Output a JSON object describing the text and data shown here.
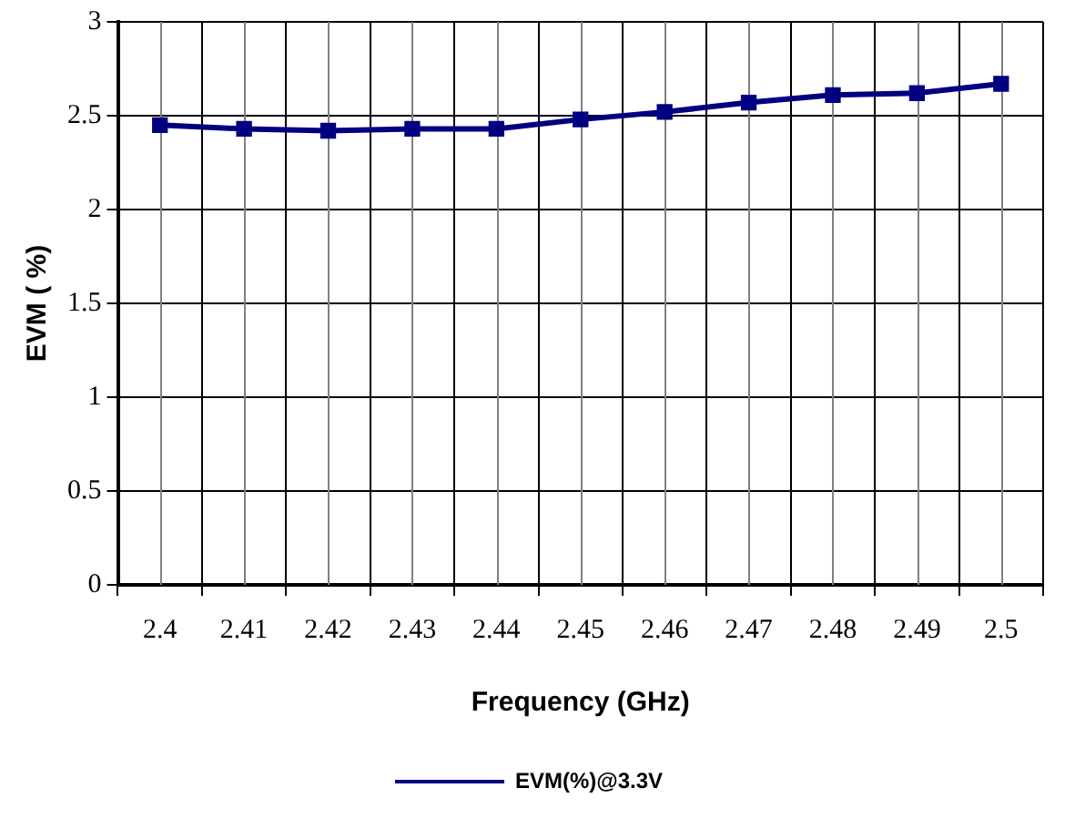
{
  "chart_data": {
    "type": "line",
    "xlabel": "Frequency (GHz)",
    "ylabel": "EVM ( %)",
    "categories": [
      "2.4",
      "2.41",
      "2.42",
      "2.43",
      "2.44",
      "2.45",
      "2.46",
      "2.47",
      "2.48",
      "2.49",
      "2.5"
    ],
    "series": [
      {
        "name": "EVM(%)@3.3V",
        "color": "#000080",
        "values": [
          2.45,
          2.43,
          2.42,
          2.43,
          2.43,
          2.48,
          2.52,
          2.57,
          2.61,
          2.62,
          2.67
        ]
      }
    ],
    "ylim": [
      0,
      3
    ],
    "yticks": [
      0,
      0.5,
      1,
      1.5,
      2,
      2.5,
      3
    ],
    "grid": true,
    "legend": "bottom",
    "marker": "square",
    "line_style": "solid"
  }
}
